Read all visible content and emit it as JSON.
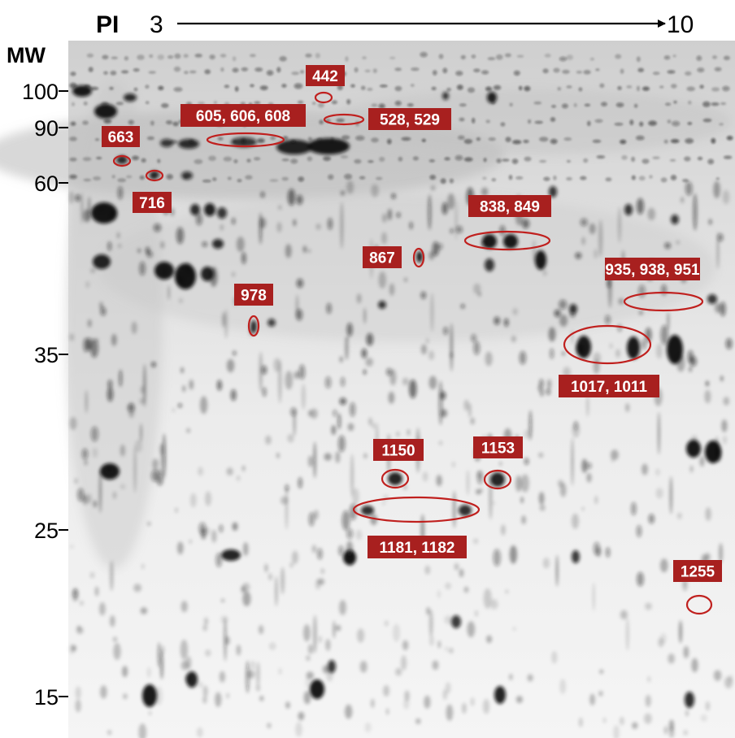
{
  "axes": {
    "pi_label": "PI",
    "pi_start": "3",
    "pi_end": "10",
    "mw_label": "MW",
    "mw_ticks": [
      "100",
      "90",
      "60",
      "35",
      "25",
      "15"
    ]
  },
  "spot_labels": [
    {
      "text": "442"
    },
    {
      "text": "605, 606, 608"
    },
    {
      "text": "528, 529"
    },
    {
      "text": "663"
    },
    {
      "text": "716"
    },
    {
      "text": "838, 849"
    },
    {
      "text": "867"
    },
    {
      "text": "935, 938, 951"
    },
    {
      "text": "978"
    },
    {
      "text": "1017, 1011"
    },
    {
      "text": "1150"
    },
    {
      "text": "1153"
    },
    {
      "text": "1181, 1182"
    },
    {
      "text": "1255"
    }
  ],
  "colors": {
    "label_bg": "#a8201f",
    "circle": "#c0201e",
    "spot": "#111111"
  }
}
